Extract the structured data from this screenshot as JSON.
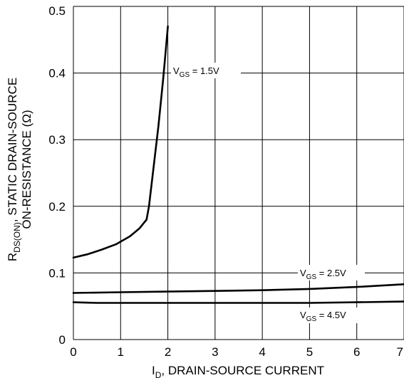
{
  "chart_data": {
    "type": "line",
    "xlabel": {
      "main": "I",
      "sub": "D",
      "rest": ", DRAIN-SOURCE CURRENT"
    },
    "ylabel": {
      "line1_main": "R",
      "line1_sub": "DS(ON)",
      "line1_rest": ", STATIC DRAIN-SOURCE",
      "line2": "ON-RESISTANCE (Ω)"
    },
    "xlim": [
      0,
      7
    ],
    "ylim": [
      0,
      0.5
    ],
    "xticks": [
      "0",
      "1",
      "2",
      "3",
      "4",
      "5",
      "6",
      "7"
    ],
    "yticks": [
      "0",
      "0.1",
      "0.2",
      "0.3",
      "0.4",
      "0.5"
    ],
    "grid": true,
    "series": [
      {
        "label_main": "V",
        "label_sub": "GS",
        "label_rest": " = 1.5V",
        "points": [
          [
            0,
            0.123
          ],
          [
            0.3,
            0.128
          ],
          [
            0.6,
            0.135
          ],
          [
            0.9,
            0.143
          ],
          [
            1.2,
            0.155
          ],
          [
            1.4,
            0.167
          ],
          [
            1.55,
            0.18
          ],
          [
            1.6,
            0.2
          ],
          [
            1.7,
            0.26
          ],
          [
            1.8,
            0.32
          ],
          [
            1.9,
            0.39
          ],
          [
            1.95,
            0.43
          ],
          [
            2.0,
            0.47
          ]
        ]
      },
      {
        "label_main": "V",
        "label_sub": "GS",
        "label_rest": " = 2.5V",
        "points": [
          [
            0,
            0.07
          ],
          [
            1,
            0.071
          ],
          [
            2,
            0.072
          ],
          [
            3,
            0.073
          ],
          [
            4,
            0.074
          ],
          [
            5,
            0.076
          ],
          [
            6,
            0.079
          ],
          [
            7,
            0.083
          ]
        ]
      },
      {
        "label_main": "V",
        "label_sub": "GS",
        "label_rest": " = 4.5V",
        "points": [
          [
            0,
            0.056
          ],
          [
            0.5,
            0.055
          ],
          [
            1,
            0.055
          ],
          [
            2,
            0.055
          ],
          [
            3,
            0.055
          ],
          [
            4,
            0.055
          ],
          [
            5,
            0.055
          ],
          [
            6,
            0.056
          ],
          [
            7,
            0.057
          ]
        ]
      }
    ]
  }
}
